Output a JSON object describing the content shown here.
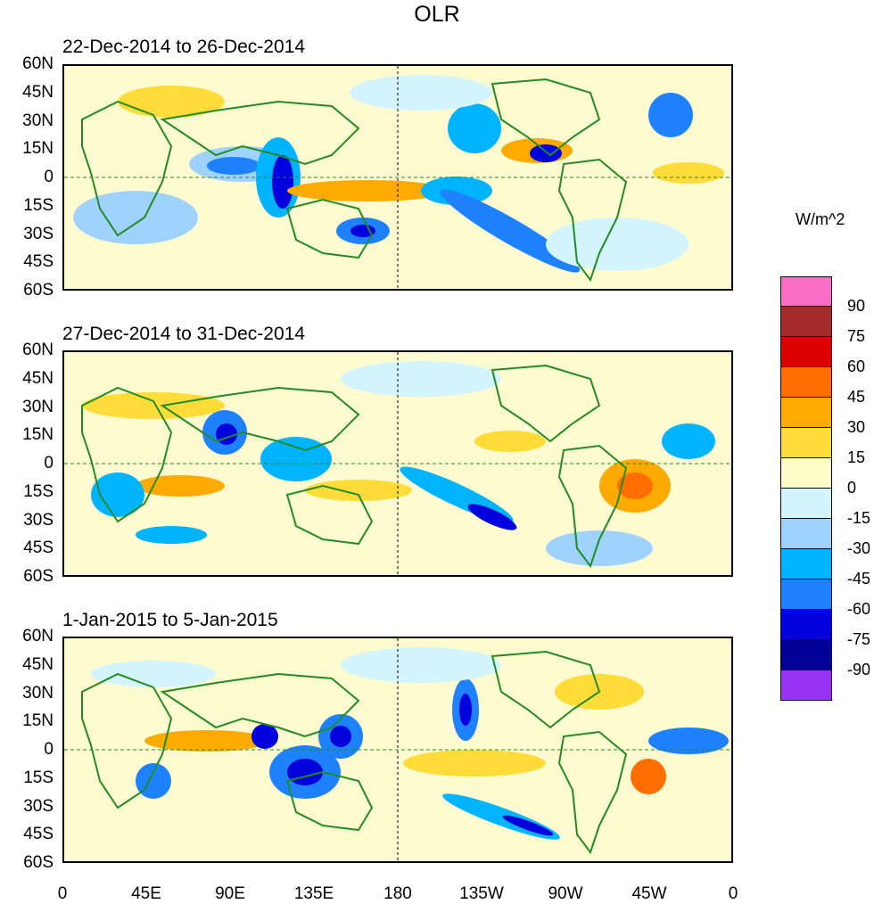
{
  "title": "OLR",
  "units": "W/m^2",
  "panels": [
    {
      "date_range": "22-Dec-2014 to 26-Dec-2014"
    },
    {
      "date_range": "27-Dec-2014 to 31-Dec-2014"
    },
    {
      "date_range": "1-Jan-2015 to 5-Jan-2015"
    }
  ],
  "lat_labels": [
    "60N",
    "45N",
    "30N",
    "15N",
    "0",
    "15S",
    "30S",
    "45S",
    "60S"
  ],
  "lon_labels": [
    "0",
    "45E",
    "90E",
    "135E",
    "180",
    "135W",
    "90W",
    "45W",
    "0"
  ],
  "colorbar": {
    "ticks": [
      "90",
      "75",
      "60",
      "45",
      "30",
      "15",
      "0",
      "-15",
      "-30",
      "-45",
      "-60",
      "-75",
      "-90"
    ],
    "colors": [
      "#fa6ec8",
      "#a52a2a",
      "#dc0000",
      "#ff6e00",
      "#ffaa00",
      "#ffdc37",
      "#fffbc8",
      "#d2f5ff",
      "#a0d2ff",
      "#00b4ff",
      "#1e82ff",
      "#0000dc",
      "#000096",
      "#9632f0"
    ]
  },
  "colors": {
    "coast": "#228b22",
    "land_base": "#fffbd0"
  }
}
